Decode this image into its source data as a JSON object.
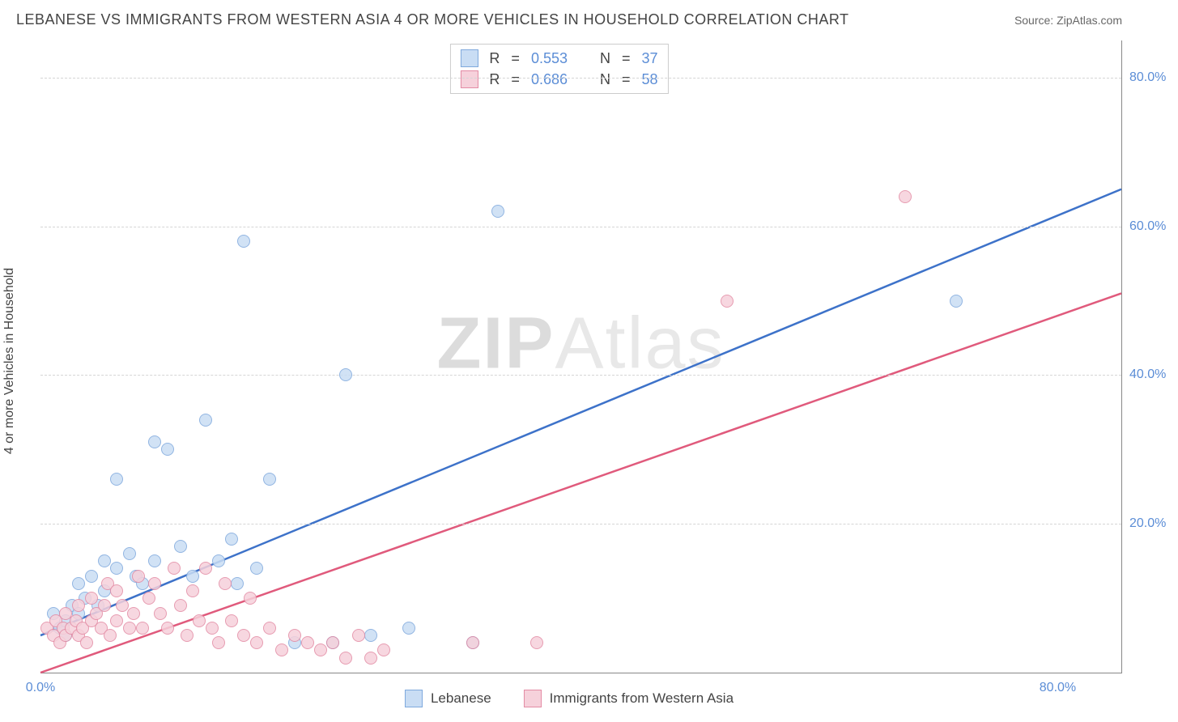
{
  "title": "LEBANESE VS IMMIGRANTS FROM WESTERN ASIA 4 OR MORE VEHICLES IN HOUSEHOLD CORRELATION CHART",
  "source": "Source: ZipAtlas.com",
  "ylabel": "4 or more Vehicles in Household",
  "watermark": {
    "bold": "ZIP",
    "rest": "Atlas"
  },
  "axes": {
    "xlim": [
      0,
      85
    ],
    "ylim": [
      0,
      85
    ],
    "xticks": [
      {
        "v": 0,
        "label": "0.0%"
      },
      {
        "v": 80,
        "label": "80.0%"
      }
    ],
    "yticks": [
      {
        "v": 20,
        "label": "20.0%"
      },
      {
        "v": 40,
        "label": "40.0%"
      },
      {
        "v": 60,
        "label": "60.0%"
      },
      {
        "v": 80,
        "label": "80.0%"
      }
    ],
    "grid_color": "#d5d5d5"
  },
  "series": [
    {
      "key": "lebanese",
      "name": "Lebanese",
      "marker_fill": "#c9ddf4",
      "marker_stroke": "#7fa9dd",
      "line_color": "#3d72c9",
      "line_width": 2.5,
      "r": 0.553,
      "n": 37,
      "trend": {
        "x1": 0,
        "y1": 5,
        "x2": 85,
        "y2": 65
      },
      "points": [
        [
          1,
          8
        ],
        [
          1.5,
          6
        ],
        [
          2,
          7
        ],
        [
          2.5,
          9
        ],
        [
          2,
          5
        ],
        [
          3,
          8
        ],
        [
          3,
          12
        ],
        [
          3.5,
          10
        ],
        [
          4,
          13
        ],
        [
          4.5,
          9
        ],
        [
          5,
          15
        ],
        [
          5,
          11
        ],
        [
          6,
          14
        ],
        [
          6,
          26
        ],
        [
          7,
          16
        ],
        [
          7.5,
          13
        ],
        [
          8,
          12
        ],
        [
          9,
          31
        ],
        [
          9,
          15
        ],
        [
          10,
          30
        ],
        [
          11,
          17
        ],
        [
          12,
          13
        ],
        [
          13,
          34
        ],
        [
          14,
          15
        ],
        [
          15,
          18
        ],
        [
          15.5,
          12
        ],
        [
          16,
          58
        ],
        [
          17,
          14
        ],
        [
          18,
          26
        ],
        [
          20,
          4
        ],
        [
          23,
          4
        ],
        [
          24,
          40
        ],
        [
          26,
          5
        ],
        [
          29,
          6
        ],
        [
          34,
          4
        ],
        [
          36,
          62
        ],
        [
          72,
          50
        ]
      ]
    },
    {
      "key": "immigrants",
      "name": "Immigrants from Western Asia",
      "marker_fill": "#f6d1db",
      "marker_stroke": "#e38ba4",
      "line_color": "#e05a7c",
      "line_width": 2.5,
      "r": 0.686,
      "n": 58,
      "trend": {
        "x1": 0,
        "y1": 0,
        "x2": 85,
        "y2": 51
      },
      "points": [
        [
          0.5,
          6
        ],
        [
          1,
          5
        ],
        [
          1.2,
          7
        ],
        [
          1.5,
          4
        ],
        [
          1.8,
          6
        ],
        [
          2,
          5
        ],
        [
          2,
          8
        ],
        [
          2.4,
          6
        ],
        [
          2.8,
          7
        ],
        [
          3,
          5
        ],
        [
          3,
          9
        ],
        [
          3.3,
          6
        ],
        [
          3.6,
          4
        ],
        [
          4,
          7
        ],
        [
          4,
          10
        ],
        [
          4.4,
          8
        ],
        [
          4.8,
          6
        ],
        [
          5,
          9
        ],
        [
          5.3,
          12
        ],
        [
          5.5,
          5
        ],
        [
          6,
          7
        ],
        [
          6,
          11
        ],
        [
          6.4,
          9
        ],
        [
          7,
          6
        ],
        [
          7.3,
          8
        ],
        [
          7.7,
          13
        ],
        [
          8,
          6
        ],
        [
          8.5,
          10
        ],
        [
          9,
          12
        ],
        [
          9.4,
          8
        ],
        [
          10,
          6
        ],
        [
          10.5,
          14
        ],
        [
          11,
          9
        ],
        [
          11.5,
          5
        ],
        [
          12,
          11
        ],
        [
          12.5,
          7
        ],
        [
          13,
          14
        ],
        [
          13.5,
          6
        ],
        [
          14,
          4
        ],
        [
          14.5,
          12
        ],
        [
          15,
          7
        ],
        [
          16,
          5
        ],
        [
          16.5,
          10
        ],
        [
          17,
          4
        ],
        [
          18,
          6
        ],
        [
          19,
          3
        ],
        [
          20,
          5
        ],
        [
          21,
          4
        ],
        [
          22,
          3
        ],
        [
          23,
          4
        ],
        [
          24,
          2
        ],
        [
          25,
          5
        ],
        [
          26,
          2
        ],
        [
          27,
          3
        ],
        [
          34,
          4
        ],
        [
          39,
          4
        ],
        [
          54,
          50
        ],
        [
          68,
          64
        ]
      ]
    }
  ],
  "legend": {
    "r_label": "R",
    "n_label": "N",
    "eq": "="
  }
}
